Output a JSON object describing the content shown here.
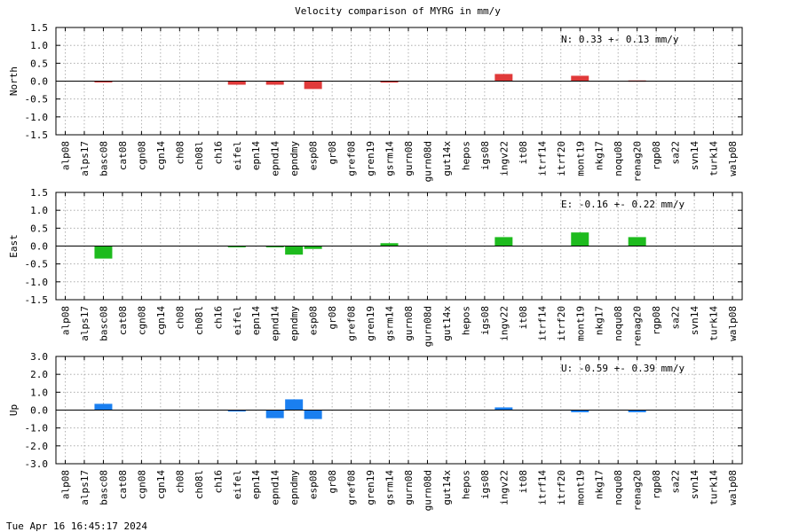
{
  "title": "Velocity comparison of MYRG in mm/y",
  "timestamp": "Tue Apr 16 16:45:17 2024",
  "stations": [
    "alp08",
    "alps17",
    "basc08",
    "cat08",
    "cgn08",
    "cgn14",
    "ch08",
    "ch08l",
    "ch16",
    "eifel",
    "epn14",
    "epnd14",
    "epndmy",
    "esp08",
    "gr08",
    "gref08",
    "gren19",
    "gsrm14",
    "gurn08",
    "gurn08d",
    "gut14x",
    "hepos",
    "igs08",
    "ingv22",
    "it08",
    "itrf14",
    "itrf20",
    "mont19",
    "nkg17",
    "noqu08",
    "renag20",
    "rgp08",
    "sa22",
    "svn14",
    "turk14",
    "walp08"
  ],
  "chart_data": [
    {
      "type": "bar",
      "ylabel": "North",
      "color": "#e03a3a",
      "ylim": [
        -1.5,
        1.5
      ],
      "yticks": [
        "1.5",
        "1.0",
        "0.5",
        "0.0",
        "-0.5",
        "-1.0",
        "-1.5"
      ],
      "grid": true,
      "annotation": "N:   0.33 +-  0.13 mm/y",
      "values": {
        "basc08": -0.03,
        "eifel": -0.1,
        "epnd14": -0.1,
        "esp08": -0.22,
        "gsrm14": -0.04,
        "ingv22": 0.2,
        "mont19": 0.15,
        "renag20": 0.02
      }
    },
    {
      "type": "bar",
      "ylabel": "East",
      "color": "#1ebb1e",
      "ylim": [
        -1.5,
        1.5
      ],
      "yticks": [
        "1.5",
        "1.0",
        "0.5",
        "0.0",
        "-0.5",
        "-1.0",
        "-1.5"
      ],
      "grid": true,
      "annotation": "E:  -0.16 +-  0.22 mm/y",
      "values": {
        "basc08": -0.35,
        "eifel": -0.03,
        "epnd14": -0.03,
        "epndmy": -0.24,
        "esp08": -0.08,
        "gsrm14": 0.08,
        "ingv22": 0.25,
        "mont19": 0.38,
        "renag20": 0.25
      }
    },
    {
      "type": "bar",
      "ylabel": "Up",
      "color": "#1a7ff0",
      "ylim": [
        -3.0,
        3.0
      ],
      "yticks": [
        "3.0",
        "2.0",
        "1.0",
        "0.0",
        "-1.0",
        "-2.0",
        "-3.0"
      ],
      "grid": true,
      "annotation": "U:  -0.59 +-  0.39 mm/y",
      "values": {
        "basc08": 0.35,
        "eifel": -0.08,
        "epnd14": -0.45,
        "epndmy": 0.6,
        "esp08": -0.5,
        "ingv22": 0.15,
        "mont19": -0.12,
        "renag20": -0.12
      }
    }
  ]
}
